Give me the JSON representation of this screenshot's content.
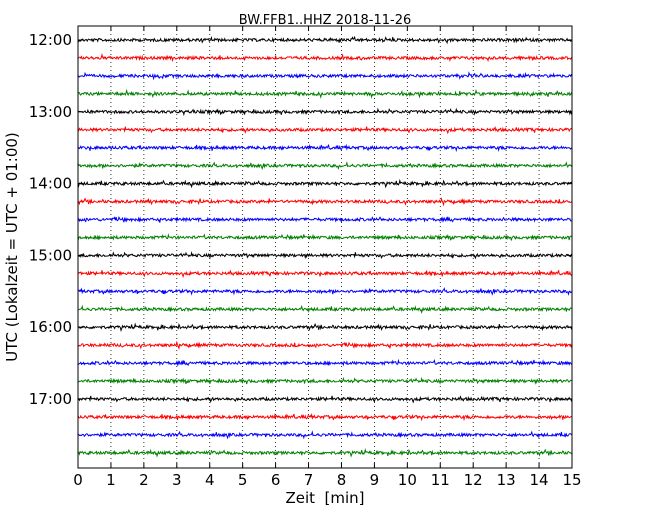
{
  "chart_data": {
    "type": "line",
    "title": "BW.FFB1..HHZ 2018-11-26",
    "xlabel": "Zeit  [min]",
    "ylabel": "UTC (Lokalzeit = UTC + 01:00)",
    "xlim": [
      0,
      15
    ],
    "x_ticks": [
      "0",
      "1",
      "2",
      "3",
      "4",
      "5",
      "6",
      "7",
      "8",
      "9",
      "10",
      "11",
      "12",
      "13",
      "14",
      "15"
    ],
    "y_ticks": [
      "12:00",
      "13:00",
      "14:00",
      "15:00",
      "16:00",
      "17:00"
    ],
    "grid": "vertical-dotted",
    "trace_colors": [
      "#000000",
      "#ff0000",
      "#0000ff",
      "#008000"
    ],
    "traces": [
      {
        "start": "12:00"
      },
      {
        "start": "12:15"
      },
      {
        "start": "12:30"
      },
      {
        "start": "12:45"
      },
      {
        "start": "13:00"
      },
      {
        "start": "13:15"
      },
      {
        "start": "13:30"
      },
      {
        "start": "13:45"
      },
      {
        "start": "14:00"
      },
      {
        "start": "14:15"
      },
      {
        "start": "14:30"
      },
      {
        "start": "14:45"
      },
      {
        "start": "15:00"
      },
      {
        "start": "15:15"
      },
      {
        "start": "15:30"
      },
      {
        "start": "15:45"
      },
      {
        "start": "16:00"
      },
      {
        "start": "16:15"
      },
      {
        "start": "16:30"
      },
      {
        "start": "16:45"
      },
      {
        "start": "17:00"
      },
      {
        "start": "17:15"
      },
      {
        "start": "17:30"
      },
      {
        "start": "17:45"
      }
    ]
  }
}
